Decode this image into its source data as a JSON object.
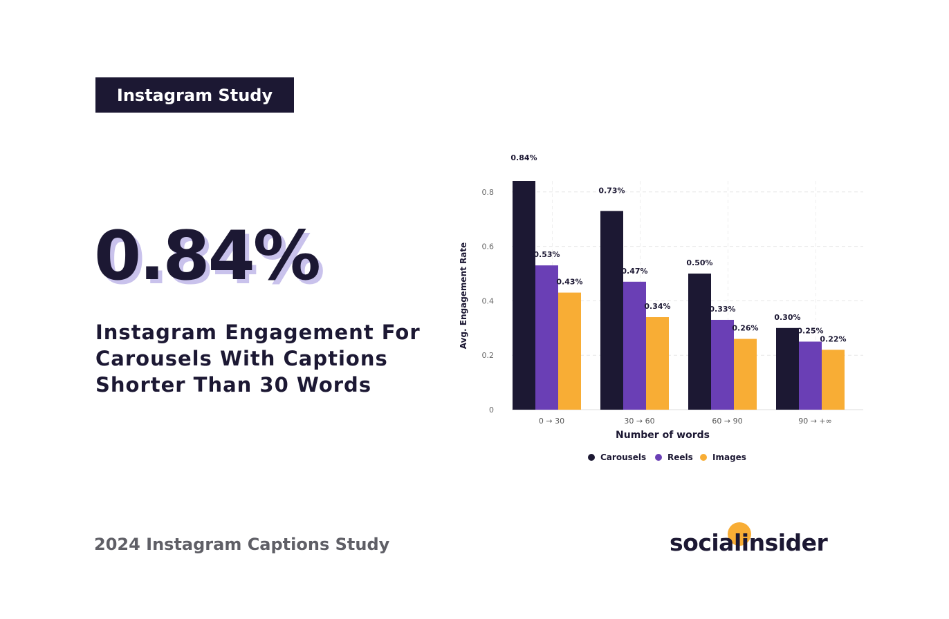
{
  "badge": "Instagram Study",
  "stat": "0.84%",
  "headline": "Instagram Engagement For Carousels With Captions Shorter Than 30 Words",
  "footer": "2024 Instagram Captions Study",
  "brand": "socialinsider",
  "colors": {
    "carousels": "#1c1833",
    "reels": "#6a3fb5",
    "images": "#f8ad35",
    "badge_bg": "#1c1833",
    "stat_shadow": "#c9c2ec"
  },
  "chart_data": {
    "type": "bar",
    "categories": [
      "0 → 30",
      "30 → 60",
      "60 → 90",
      "90 → +∞"
    ],
    "series": [
      {
        "name": "Carousels",
        "values": [
          0.84,
          0.73,
          0.5,
          0.3
        ],
        "labels": [
          "0.84%",
          "0.73%",
          "0.50%",
          "0.30%"
        ]
      },
      {
        "name": "Reels",
        "values": [
          0.53,
          0.47,
          0.33,
          0.25
        ],
        "labels": [
          "0.53%",
          "0.47%",
          "0.33%",
          "0.25%"
        ]
      },
      {
        "name": "Images",
        "values": [
          0.43,
          0.34,
          0.26,
          0.22
        ],
        "labels": [
          "0.43%",
          "0.34%",
          "0.26%",
          "0.22%"
        ]
      }
    ],
    "xlabel": "Number of words",
    "ylabel": "Avg. Engagement Rate",
    "yticks": [
      "0",
      "0.2",
      "0.4",
      "0.6",
      "0.8"
    ],
    "ylim": [
      0,
      0.84
    ],
    "grid": true,
    "legend_position": "bottom-center"
  }
}
